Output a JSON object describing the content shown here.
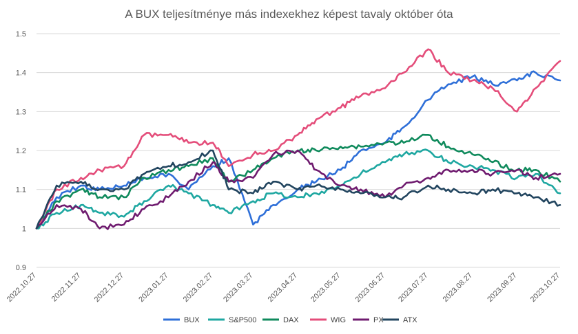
{
  "chart_data": {
    "type": "line",
    "title": "A BUX teljesítménye más indexekhez képest tavaly október óta",
    "xlabel": "",
    "ylabel": "",
    "ylim": [
      0.9,
      1.5
    ],
    "yticks": [
      "0.9",
      "1",
      "1.1",
      "1.2",
      "1.3",
      "1.4",
      "1.5"
    ],
    "grid": true,
    "legend_position": "bottom",
    "x_tick_labels": [
      "2022.10.27",
      "2022.11.27",
      "2022.12.27",
      "2023.01.27",
      "2023.02.27",
      "2023.03.27",
      "2023.04.27",
      "2023.05.27",
      "2023.06.27",
      "2023.07.27",
      "2023.08.27",
      "2023.09.27",
      "2023.10.27"
    ],
    "x": [
      "2022.10.27",
      "2022.11.10",
      "2022.11.27",
      "2022.12.10",
      "2022.12.27",
      "2023.01.10",
      "2023.01.27",
      "2023.02.10",
      "2023.02.27",
      "2023.03.10",
      "2023.03.27",
      "2023.04.10",
      "2023.04.27",
      "2023.05.10",
      "2023.05.27",
      "2023.06.10",
      "2023.06.27",
      "2023.07.10",
      "2023.07.27",
      "2023.08.10",
      "2023.08.27",
      "2023.09.10",
      "2023.09.27",
      "2023.10.10",
      "2023.10.27"
    ],
    "series": [
      {
        "name": "BUX",
        "color": "#2e6fd8",
        "values": [
          1.0,
          1.08,
          1.11,
          1.1,
          1.11,
          1.13,
          1.14,
          1.1,
          1.16,
          1.18,
          1.01,
          1.06,
          1.1,
          1.12,
          1.15,
          1.2,
          1.22,
          1.26,
          1.33,
          1.37,
          1.39,
          1.37,
          1.38,
          1.4,
          1.38
        ]
      },
      {
        "name": "S&P500",
        "color": "#1ea7a1",
        "values": [
          1.0,
          1.04,
          1.06,
          1.04,
          1.03,
          1.07,
          1.11,
          1.09,
          1.06,
          1.04,
          1.07,
          1.09,
          1.08,
          1.09,
          1.11,
          1.14,
          1.17,
          1.19,
          1.2,
          1.17,
          1.16,
          1.15,
          1.13,
          1.14,
          1.09
        ]
      },
      {
        "name": "DAX",
        "color": "#0f8a5c",
        "values": [
          1.0,
          1.07,
          1.1,
          1.08,
          1.08,
          1.13,
          1.15,
          1.16,
          1.18,
          1.12,
          1.15,
          1.18,
          1.2,
          1.2,
          1.21,
          1.21,
          1.22,
          1.22,
          1.24,
          1.21,
          1.19,
          1.17,
          1.15,
          1.15,
          1.12
        ]
      },
      {
        "name": "WIG",
        "color": "#e44d7a",
        "values": [
          1.0,
          1.1,
          1.13,
          1.15,
          1.16,
          1.24,
          1.24,
          1.22,
          1.22,
          1.16,
          1.19,
          1.2,
          1.24,
          1.28,
          1.31,
          1.34,
          1.36,
          1.4,
          1.46,
          1.4,
          1.38,
          1.36,
          1.3,
          1.36,
          1.43
        ]
      },
      {
        "name": "PX",
        "color": "#6f1b6f",
        "values": [
          1.0,
          1.06,
          1.05,
          1.0,
          1.01,
          1.05,
          1.08,
          1.12,
          1.17,
          1.12,
          1.13,
          1.19,
          1.2,
          1.15,
          1.11,
          1.1,
          1.08,
          1.11,
          1.13,
          1.15,
          1.15,
          1.14,
          1.15,
          1.13,
          1.14
        ]
      },
      {
        "name": "ATX",
        "color": "#22455f",
        "values": [
          1.0,
          1.11,
          1.12,
          1.1,
          1.1,
          1.14,
          1.16,
          1.17,
          1.2,
          1.1,
          1.09,
          1.12,
          1.1,
          1.11,
          1.1,
          1.09,
          1.08,
          1.08,
          1.11,
          1.1,
          1.09,
          1.1,
          1.09,
          1.08,
          1.06
        ]
      }
    ]
  }
}
